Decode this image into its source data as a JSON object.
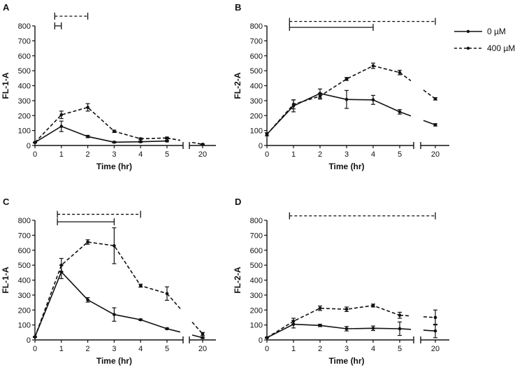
{
  "legend": {
    "entries": [
      {
        "label": "0 µM",
        "style": "solid"
      },
      {
        "label": "400 µM",
        "style": "dashed"
      }
    ]
  },
  "chart_data": [
    {
      "panel": "A",
      "type": "line",
      "xlabel": "Time (hr)",
      "ylabel": "FL-1-A",
      "ylim": [
        0,
        800
      ],
      "yticks": [
        0,
        100,
        200,
        300,
        400,
        500,
        600,
        700,
        800
      ],
      "xticks": [
        0,
        1,
        2,
        3,
        4,
        5,
        20
      ],
      "xticks_text": [
        "0",
        "1",
        "2",
        "3",
        "4",
        "5",
        "20"
      ],
      "axis_break": [
        5.5,
        19.5
      ],
      "series": [
        {
          "name": "0 µM",
          "style": "solid",
          "points": [
            [
              0,
              20,
              3
            ],
            [
              1,
              128,
              35
            ],
            [
              2,
              60,
              8
            ],
            [
              3,
              22,
              5
            ],
            [
              4,
              25,
              5
            ],
            [
              5,
              30,
              5
            ]
          ],
          "connector_to_20": null
        },
        {
          "name": "400 µM",
          "style": "dashed",
          "points": [
            [
              0,
              20,
              3
            ],
            [
              1,
              205,
              25
            ],
            [
              2,
              255,
              25
            ],
            [
              3,
              95,
              8
            ],
            [
              4,
              45,
              5
            ],
            [
              5,
              50,
              6
            ],
            [
              20,
              8,
              3
            ]
          ],
          "connector_to_20": [
            [
              5.5,
              30
            ],
            [
              6.0,
              20
            ]
          ]
        }
      ],
      "significance": [
        {
          "style": "dashed",
          "from": 0.75,
          "to": 2.0,
          "y": 865,
          "open_end": true
        },
        {
          "style": "solid",
          "from": 0.75,
          "to": 1.0,
          "y": 800
        }
      ]
    },
    {
      "panel": "B",
      "type": "line",
      "xlabel": "Time (hr)",
      "ylabel": "FL-2-A",
      "ylim": [
        0,
        800
      ],
      "yticks": [
        0,
        100,
        200,
        300,
        400,
        500,
        600,
        700,
        800
      ],
      "xticks": [
        0,
        1,
        2,
        3,
        4,
        5,
        20
      ],
      "xticks_text": [
        "0",
        "1",
        "2",
        "3",
        "4",
        "5",
        "20"
      ],
      "axis_break": [
        5.5,
        19.5
      ],
      "series": [
        {
          "name": "0 µM",
          "style": "solid",
          "points": [
            [
              0,
              75,
              10
            ],
            [
              1,
              265,
              40
            ],
            [
              2,
              348,
              30
            ],
            [
              3,
              308,
              60
            ],
            [
              4,
              305,
              30
            ],
            [
              5,
              225,
              15
            ],
            [
              20,
              138,
              8
            ]
          ],
          "connector_to_20": [
            [
              5.5,
              200
            ],
            [
              6.0,
              180
            ]
          ]
        },
        {
          "name": "400 µM",
          "style": "dashed",
          "points": [
            [
              0,
              75,
              10
            ],
            [
              1,
              275,
              30
            ],
            [
              2,
              330,
              20
            ],
            [
              3,
              445,
              10
            ],
            [
              4,
              533,
              18
            ],
            [
              5,
              488,
              15
            ],
            [
              20,
              312,
              8
            ]
          ],
          "connector_to_20": [
            [
              5.5,
              430
            ],
            [
              6.0,
              390
            ]
          ]
        }
      ],
      "significance": [
        {
          "style": "dashed",
          "from": 0.85,
          "to": 20,
          "y": 830,
          "open_end": false
        },
        {
          "style": "solid",
          "from": 0.85,
          "to": 4.0,
          "y": 790
        }
      ]
    },
    {
      "panel": "C",
      "type": "line",
      "xlabel": "Time (hr)",
      "ylabel": "FL-1-A",
      "ylim": [
        0,
        800
      ],
      "yticks": [
        0,
        100,
        200,
        300,
        400,
        500,
        600,
        700,
        800
      ],
      "xticks": [
        0,
        1,
        2,
        3,
        4,
        5,
        20
      ],
      "xticks_text": [
        "0",
        "1",
        "2",
        "3",
        "4",
        "5",
        "20"
      ],
      "axis_break": [
        5.5,
        19.5
      ],
      "series": [
        {
          "name": "0 µM",
          "style": "solid",
          "points": [
            [
              0,
              20,
              3
            ],
            [
              1,
              455,
              45
            ],
            [
              2,
              268,
              15
            ],
            [
              3,
              170,
              45
            ],
            [
              4,
              135,
              5
            ],
            [
              5,
              75,
              5
            ],
            [
              20,
              15,
              5
            ]
          ],
          "connector_to_20": [
            [
              5.5,
              55
            ],
            [
              6.0,
              40
            ]
          ]
        },
        {
          "name": "400 µM",
          "style": "dashed",
          "points": [
            [
              0,
              20,
              3
            ],
            [
              1,
              500,
              45
            ],
            [
              2,
              655,
              15
            ],
            [
              3,
              630,
              120
            ],
            [
              4,
              363,
              10
            ],
            [
              5,
              310,
              45
            ],
            [
              20,
              40,
              10
            ]
          ],
          "connector_to_20": [
            [
              5.5,
              200
            ],
            [
              6.0,
              130
            ]
          ]
        }
      ],
      "significance": [
        {
          "style": "dashed",
          "from": 0.85,
          "to": 4.0,
          "y": 840,
          "open_end": false
        },
        {
          "style": "solid",
          "from": 0.85,
          "to": 3.0,
          "y": 790
        }
      ]
    },
    {
      "panel": "D",
      "type": "line",
      "xlabel": "Time (hr)",
      "ylabel": "FL-2-A",
      "ylim": [
        0,
        800
      ],
      "yticks": [
        0,
        100,
        200,
        300,
        400,
        500,
        600,
        700,
        800
      ],
      "xticks": [
        0,
        1,
        2,
        3,
        4,
        5,
        20
      ],
      "xticks_text": [
        "0",
        "1",
        "2",
        "3",
        "4",
        "5",
        "20"
      ],
      "axis_break": [
        5.5,
        19.5
      ],
      "series": [
        {
          "name": "0 µM",
          "style": "solid",
          "points": [
            [
              0,
              15,
              3
            ],
            [
              1,
              105,
              25
            ],
            [
              2,
              97,
              8
            ],
            [
              3,
              75,
              15
            ],
            [
              4,
              78,
              15
            ],
            [
              5,
              75,
              45
            ],
            [
              20,
              60,
              45
            ]
          ],
          "connector_to_20": [
            [
              5.5,
              72
            ],
            [
              6.0,
              70
            ]
          ]
        },
        {
          "name": "400 µM",
          "style": "dashed",
          "points": [
            [
              0,
              15,
              3
            ],
            [
              1,
              125,
              20
            ],
            [
              2,
              212,
              15
            ],
            [
              3,
              205,
              15
            ],
            [
              4,
              230,
              10
            ],
            [
              5,
              165,
              20
            ],
            [
              20,
              150,
              50
            ]
          ],
          "connector_to_20": [
            [
              5.5,
              160
            ],
            [
              6.0,
              155
            ]
          ]
        }
      ],
      "significance": [
        {
          "style": "dashed",
          "from": 0.85,
          "to": 20,
          "y": 830,
          "open_end": false
        }
      ]
    }
  ]
}
